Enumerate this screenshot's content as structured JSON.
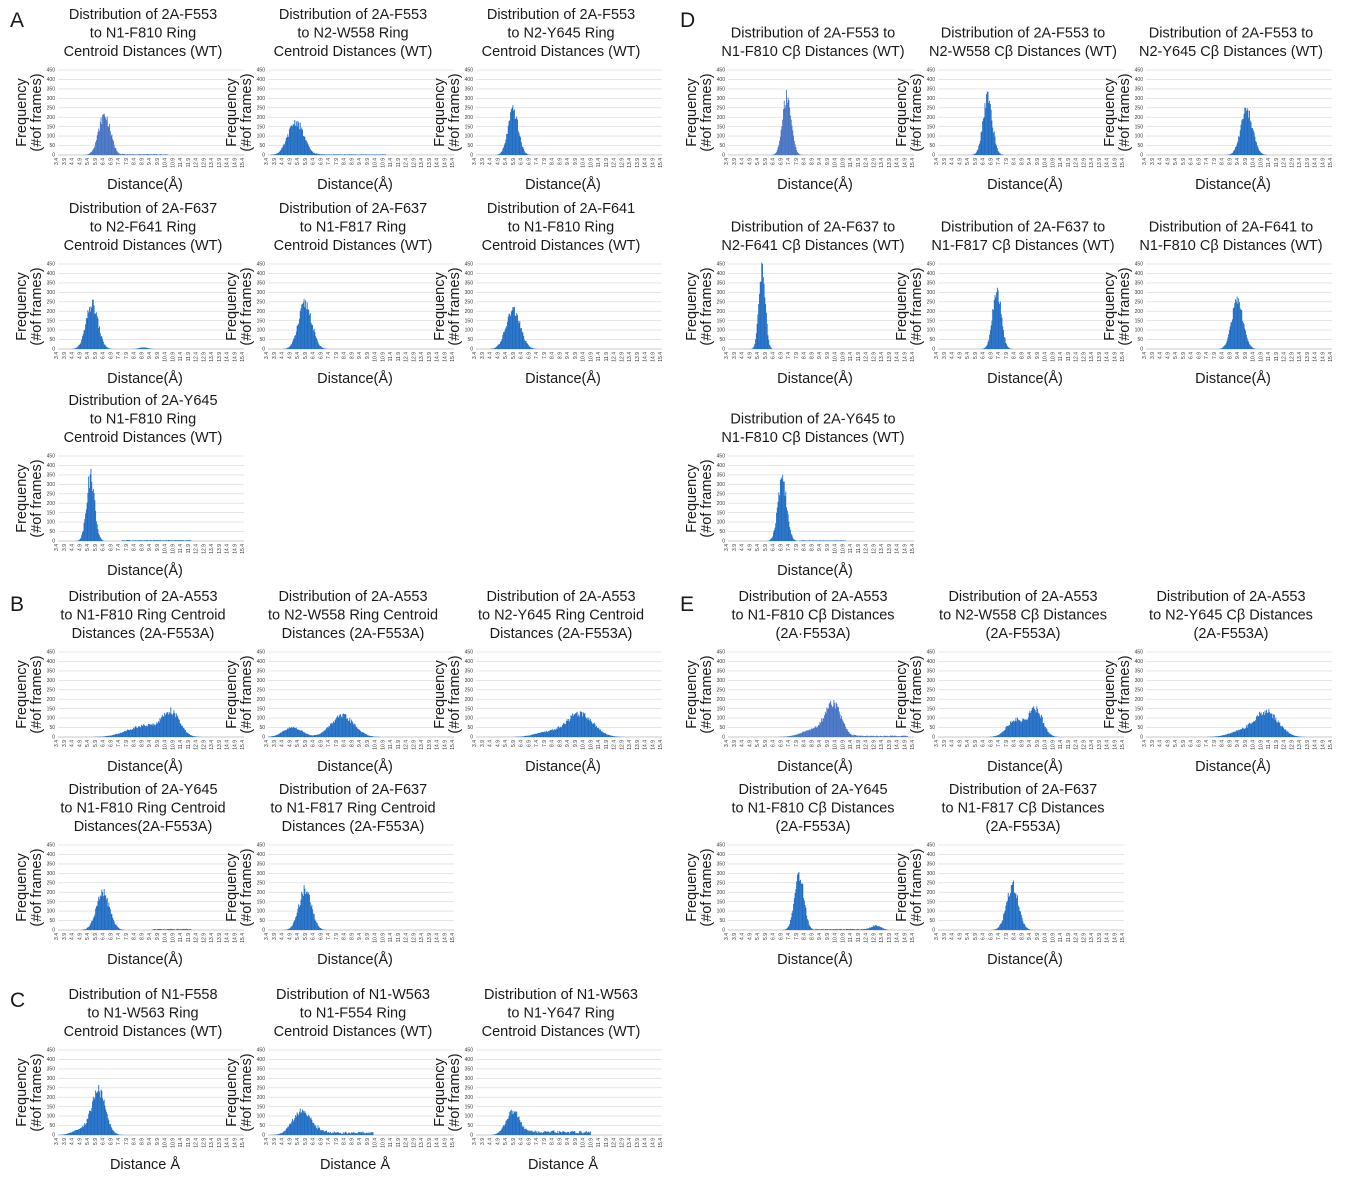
{
  "ylabel": [
    "Frequency",
    "(#of frames)"
  ],
  "xlabel": "Distance(Å)",
  "xlabel_alt": "Distance Å",
  "yticks": [
    0,
    50,
    100,
    150,
    200,
    250,
    300,
    350,
    400,
    450
  ],
  "xticks": [
    "3.4",
    "3.9",
    "4.4",
    "4.9",
    "5.4",
    "5.9",
    "6.4",
    "6.9",
    "7.4",
    "7.9",
    "8.4",
    "8.9",
    "9.4",
    "9.9",
    "10.4",
    "10.9",
    "11.4",
    "11.9",
    "12.4",
    "12.9",
    "13.4",
    "13.9",
    "14.4",
    "14.9",
    "15.4"
  ],
  "bar_color": "#1f6cc4",
  "bar_color_alt": "#4472c4",
  "panels": [
    "A",
    "B",
    "C",
    "D",
    "E"
  ],
  "chart_data": [
    {
      "id": "A1",
      "type": "bar",
      "panel": "A",
      "title": [
        "Distribution of 2A-F553",
        "to N1-F810 Ring",
        "Centroid Distances (WT)"
      ],
      "xlabel": "Distance(Å)",
      "ylabel": "Frequency (#of frames)",
      "ylim": [
        0,
        450
      ],
      "xlim": [
        3.4,
        15.4
      ],
      "peaks": [
        {
          "center": 6.4,
          "height": 210,
          "width": 0.38
        }
      ],
      "tail": [
        {
          "from": 7.5,
          "to": 10.5,
          "height": 5
        }
      ]
    },
    {
      "id": "A2",
      "type": "bar",
      "panel": "A",
      "title": [
        "Distribution of 2A-F553",
        "to N2-W558 Ring",
        "Centroid Distances (WT)"
      ],
      "xlabel": "Distance(Å)",
      "ylabel": "Frequency (#of frames)",
      "ylim": [
        0,
        450
      ],
      "xlim": [
        3.4,
        15.4
      ],
      "peaks": [
        {
          "center": 5.2,
          "height": 175,
          "width": 0.5
        }
      ],
      "tail": [
        {
          "from": 6.5,
          "to": 11.0,
          "height": 4
        }
      ]
    },
    {
      "id": "A3",
      "type": "bar",
      "panel": "A",
      "title": [
        "Distribution of 2A-F553",
        "to N2-Y645 Ring",
        "Centroid Distances (WT)"
      ],
      "xlabel": "Distance(Å)",
      "ylabel": "Frequency (#of frames)",
      "ylim": [
        0,
        450
      ],
      "xlim": [
        3.4,
        15.4
      ],
      "peaks": [
        {
          "center": 5.8,
          "height": 235,
          "width": 0.33
        }
      ],
      "tail": []
    },
    {
      "id": "A4",
      "type": "bar",
      "panel": "A",
      "title": [
        "Distribution of 2A-F637",
        "to N2-F641 Ring",
        "Centroid Distances (WT)"
      ],
      "xlabel": "Distance(Å)",
      "ylabel": "Frequency (#of frames)",
      "ylim": [
        0,
        450
      ],
      "xlim": [
        3.4,
        15.4
      ],
      "peaks": [
        {
          "center": 5.6,
          "height": 235,
          "width": 0.38
        },
        {
          "center": 8.9,
          "height": 8,
          "width": 0.3
        }
      ],
      "tail": []
    },
    {
      "id": "A5",
      "type": "bar",
      "panel": "A",
      "title": [
        "Distribution of 2A-F637",
        "to N1-F817 Ring",
        "Centroid Distances (WT)"
      ],
      "xlabel": "Distance(Å)",
      "ylabel": "Frequency (#of frames)",
      "ylim": [
        0,
        450
      ],
      "xlim": [
        3.4,
        15.4
      ],
      "peaks": [
        {
          "center": 5.8,
          "height": 240,
          "width": 0.42
        }
      ],
      "tail": []
    },
    {
      "id": "A6",
      "type": "bar",
      "panel": "A",
      "title": [
        "Distribution of 2A-F641",
        "to N1-F810 Ring",
        "Centroid Distances (WT)"
      ],
      "xlabel": "Distance(Å)",
      "ylabel": "Frequency (#of frames)",
      "ylim": [
        0,
        450
      ],
      "xlim": [
        3.4,
        15.4
      ],
      "peaks": [
        {
          "center": 5.8,
          "height": 205,
          "width": 0.45
        }
      ],
      "tail": []
    },
    {
      "id": "A7",
      "type": "bar",
      "panel": "A",
      "title": [
        "Distribution of 2A-Y645",
        "to N1-F810 Ring",
        "Centroid Distances (WT)"
      ],
      "xlabel": "Distance(Å)",
      "ylabel": "Frequency (#of frames)",
      "ylim": [
        0,
        450
      ],
      "xlim": [
        3.4,
        15.4
      ],
      "peaks": [
        {
          "center": 5.5,
          "height": 340,
          "width": 0.26
        }
      ],
      "tail": [
        {
          "from": 7.5,
          "to": 12.0,
          "height": 5
        }
      ]
    },
    {
      "id": "B1",
      "type": "bar",
      "panel": "B",
      "title": [
        "Distribution of 2A-A553",
        "to N1-F810 Ring Centroid",
        "Distances (2A-F553A)"
      ],
      "xlabel": "Distance(Å)",
      "ylabel": "Frequency (#of frames)",
      "ylim": [
        0,
        450
      ],
      "xlim": [
        3.4,
        15.4
      ],
      "peaks": [
        {
          "center": 10.7,
          "height": 120,
          "width": 0.55
        },
        {
          "center": 9.0,
          "height": 60,
          "width": 1.1
        }
      ],
      "tail": []
    },
    {
      "id": "B2",
      "type": "bar",
      "panel": "B",
      "title": [
        "Distribution of 2A-A553",
        "to N2-W558 Ring Centroid",
        "Distances (2A-F553A)"
      ],
      "xlabel": "Distance(Å)",
      "ylabel": "Frequency (#of frames)",
      "ylim": [
        0,
        450
      ],
      "xlim": [
        3.4,
        15.4
      ],
      "peaks": [
        {
          "center": 8.2,
          "height": 110,
          "width": 0.75
        },
        {
          "center": 5.0,
          "height": 50,
          "width": 0.6
        }
      ],
      "tail": []
    },
    {
      "id": "B3",
      "type": "bar",
      "panel": "B",
      "title": [
        "Distribution of 2A-A553",
        "to N2-Y645 Ring Centroid",
        "Distances (2A-F553A)"
      ],
      "xlabel": "Distance(Å)",
      "ylabel": "Frequency (#of frames)",
      "ylim": [
        0,
        450
      ],
      "xlim": [
        3.4,
        15.4
      ],
      "peaks": [
        {
          "center": 10.1,
          "height": 125,
          "width": 0.85
        },
        {
          "center": 8.0,
          "height": 25,
          "width": 0.8
        }
      ],
      "tail": []
    },
    {
      "id": "B4",
      "type": "bar",
      "panel": "B",
      "title": [
        "Distribution of 2A-Y645",
        "to N1-F810 Ring Centroid",
        "Distances(2A-F553A)"
      ],
      "xlabel": "Distance(Å)",
      "ylabel": "Frequency (#of frames)",
      "ylim": [
        0,
        450
      ],
      "xlim": [
        3.4,
        15.4
      ],
      "peaks": [
        {
          "center": 6.3,
          "height": 195,
          "width": 0.42
        }
      ],
      "tail": [
        {
          "from": 9.5,
          "to": 12.0,
          "height": 6
        }
      ]
    },
    {
      "id": "B5",
      "type": "bar",
      "panel": "B",
      "title": [
        "Distribution of 2A-F637",
        "to N1-F817 Ring Centroid",
        "Distances (2A-F553A)"
      ],
      "xlabel": "Distance(Å)",
      "ylabel": "Frequency (#of frames)",
      "ylim": [
        0,
        450
      ],
      "xlim": [
        3.4,
        15.4
      ],
      "peaks": [
        {
          "center": 5.8,
          "height": 215,
          "width": 0.4
        }
      ],
      "tail": []
    },
    {
      "id": "C1",
      "type": "bar",
      "panel": "C",
      "title": [
        "Distribution of N1-F558",
        "to N1-W563 Ring",
        "Centroid Distances (WT)"
      ],
      "xlabel": "Distance Å",
      "ylabel": "Frequency (#of frames)",
      "ylim": [
        0,
        450
      ],
      "xlim": [
        3.4,
        15.4
      ],
      "peaks": [
        {
          "center": 6.0,
          "height": 235,
          "width": 0.45
        },
        {
          "center": 4.8,
          "height": 25,
          "width": 0.5
        }
      ],
      "tail": []
    },
    {
      "id": "C2",
      "type": "bar",
      "panel": "C",
      "title": [
        "Distribution of N1-W563",
        "to N1-F554 Ring",
        "Centroid Distances (WT)"
      ],
      "xlabel": "Distance Å",
      "ylabel": "Frequency (#of frames)",
      "ylim": [
        0,
        450
      ],
      "xlim": [
        3.4,
        15.4
      ],
      "peaks": [
        {
          "center": 5.6,
          "height": 130,
          "width": 0.6
        }
      ],
      "tail": [
        {
          "from": 6.6,
          "to": 10.2,
          "height": 18
        }
      ]
    },
    {
      "id": "C3",
      "type": "bar",
      "panel": "C",
      "title": [
        "Distribution of N1-W563",
        "to N1-Y647 Ring",
        "Centroid Distances (WT)"
      ],
      "xlabel": "Distance Å",
      "ylabel": "Frequency (#of frames)",
      "ylim": [
        0,
        450
      ],
      "xlim": [
        3.4,
        15.4
      ],
      "peaks": [
        {
          "center": 5.8,
          "height": 125,
          "width": 0.45
        }
      ],
      "tail": [
        {
          "from": 6.6,
          "to": 10.8,
          "height": 22
        }
      ]
    },
    {
      "id": "D1",
      "type": "bar",
      "panel": "D",
      "title": [
        "Distribution of 2A-F553 to",
        "N1-F810 Cβ Distances (WT)"
      ],
      "xlabel": "Distance(Å)",
      "ylabel": "Frequency (#of frames)",
      "ylim": [
        0,
        450
      ],
      "xlim": [
        3.4,
        15.4
      ],
      "peaks": [
        {
          "center": 7.2,
          "height": 315,
          "width": 0.28
        }
      ],
      "tail": []
    },
    {
      "id": "D2",
      "type": "bar",
      "panel": "D",
      "title": [
        "Distribution of 2A-F553 to",
        "N2-W558 Cβ Distances (WT)"
      ],
      "xlabel": "Distance(Å)",
      "ylabel": "Frequency (#of frames)",
      "ylim": [
        0,
        450
      ],
      "xlim": [
        3.4,
        15.4
      ],
      "peaks": [
        {
          "center": 6.6,
          "height": 300,
          "width": 0.3
        }
      ],
      "tail": []
    },
    {
      "id": "D3",
      "type": "bar",
      "panel": "D",
      "title": [
        "Distribution of 2A-F553 to",
        "N2-Y645 Cβ Distances (WT)"
      ],
      "xlabel": "Distance(Å)",
      "ylabel": "Frequency (#of frames)",
      "ylim": [
        0,
        450
      ],
      "xlim": [
        3.4,
        15.4
      ],
      "peaks": [
        {
          "center": 9.9,
          "height": 235,
          "width": 0.38
        }
      ],
      "tail": []
    },
    {
      "id": "D4",
      "type": "bar",
      "panel": "D",
      "title": [
        "Distribution of 2A-F637 to",
        "N2-F641 Cβ Distances (WT)"
      ],
      "xlabel": "Distance(Å)",
      "ylabel": "Frequency (#of frames)",
      "ylim": [
        0,
        450
      ],
      "xlim": [
        3.4,
        15.4
      ],
      "peaks": [
        {
          "center": 5.6,
          "height": 440,
          "width": 0.2
        }
      ],
      "tail": []
    },
    {
      "id": "D5",
      "type": "bar",
      "panel": "D",
      "title": [
        "Distribution of 2A-F637 to",
        "N1-F817 Cβ Distances (WT)"
      ],
      "xlabel": "Distance(Å)",
      "ylabel": "Frequency (#of frames)",
      "ylim": [
        0,
        450
      ],
      "xlim": [
        3.4,
        15.4
      ],
      "peaks": [
        {
          "center": 7.2,
          "height": 305,
          "width": 0.28
        }
      ],
      "tail": []
    },
    {
      "id": "D6",
      "type": "bar",
      "panel": "D",
      "title": [
        "Distribution of 2A-F641 to",
        "N1-F810 Cβ Distances (WT)"
      ],
      "xlabel": "Distance(Å)",
      "ylabel": "Frequency (#of frames)",
      "ylim": [
        0,
        450
      ],
      "xlim": [
        3.4,
        15.4
      ],
      "peaks": [
        {
          "center": 9.3,
          "height": 260,
          "width": 0.36
        }
      ],
      "tail": []
    },
    {
      "id": "D7",
      "type": "bar",
      "panel": "D",
      "title": [
        "Distribution of 2A-Y645 to",
        "N1-F810 Cβ Distances (WT)"
      ],
      "xlabel": "Distance(Å)",
      "ylabel": "Frequency (#of frames)",
      "ylim": [
        0,
        450
      ],
      "xlim": [
        3.4,
        15.4
      ],
      "peaks": [
        {
          "center": 6.9,
          "height": 325,
          "width": 0.28
        }
      ],
      "tail": [
        {
          "from": 8.0,
          "to": 11.0,
          "height": 4
        }
      ]
    },
    {
      "id": "E1",
      "type": "bar",
      "panel": "E",
      "title": [
        "Distribution of 2A-A553",
        "to N1-F810 Cβ Distances",
        "(2A·F553A)"
      ],
      "xlabel": "Distance(Å)",
      "ylabel": "Frequency (#of frames)",
      "ylim": [
        0,
        450
      ],
      "xlim": [
        3.4,
        15.4
      ],
      "peaks": [
        {
          "center": 10.2,
          "height": 170,
          "width": 0.5
        },
        {
          "center": 9.0,
          "height": 40,
          "width": 0.8
        }
      ],
      "tail": [
        {
          "from": 11.5,
          "to": 15.0,
          "height": 8
        }
      ]
    },
    {
      "id": "E2",
      "type": "bar",
      "panel": "E",
      "title": [
        "Distribution of 2A-A553",
        "to N2-W558 Cβ Distances",
        "(2A-F553A)"
      ],
      "xlabel": "Distance(Å)",
      "ylabel": "Frequency (#of frames)",
      "ylim": [
        0,
        450
      ],
      "xlim": [
        3.4,
        15.4
      ],
      "peaks": [
        {
          "center": 9.7,
          "height": 145,
          "width": 0.45
        },
        {
          "center": 8.4,
          "height": 90,
          "width": 0.55
        }
      ],
      "tail": []
    },
    {
      "id": "E3",
      "type": "bar",
      "panel": "E",
      "title": [
        "Distribution of 2A-A553",
        "to N2-Y645 Cβ Distances",
        "(2A-F553A)"
      ],
      "xlabel": "Distance(Å)",
      "ylabel": "Frequency (#of frames)",
      "ylim": [
        0,
        450
      ],
      "xlim": [
        3.4,
        15.4
      ],
      "peaks": [
        {
          "center": 11.2,
          "height": 130,
          "width": 0.75
        },
        {
          "center": 9.6,
          "height": 30,
          "width": 0.8
        }
      ],
      "tail": []
    },
    {
      "id": "E4",
      "type": "bar",
      "panel": "E",
      "title": [
        "Distribution of 2A-Y645",
        "to N1-F810 Cβ Distances",
        "(2A-F553A)"
      ],
      "xlabel": "Distance(Å)",
      "ylabel": "Frequency (#of frames)",
      "ylim": [
        0,
        450
      ],
      "xlim": [
        3.4,
        15.4
      ],
      "peaks": [
        {
          "center": 8.0,
          "height": 295,
          "width": 0.3
        },
        {
          "center": 13.0,
          "height": 22,
          "width": 0.3
        }
      ],
      "tail": [
        {
          "from": 9.0,
          "to": 13.0,
          "height": 6
        }
      ]
    },
    {
      "id": "E5",
      "type": "bar",
      "panel": "E",
      "title": [
        "Distribution of 2A-F637",
        "to N1-F817 Cβ Distances",
        "(2A-F553A)"
      ],
      "xlabel": "Distance(Å)",
      "ylabel": "Frequency (#of frames)",
      "ylim": [
        0,
        450
      ],
      "xlim": [
        3.4,
        15.4
      ],
      "peaks": [
        {
          "center": 8.2,
          "height": 235,
          "width": 0.38
        }
      ],
      "tail": []
    }
  ]
}
